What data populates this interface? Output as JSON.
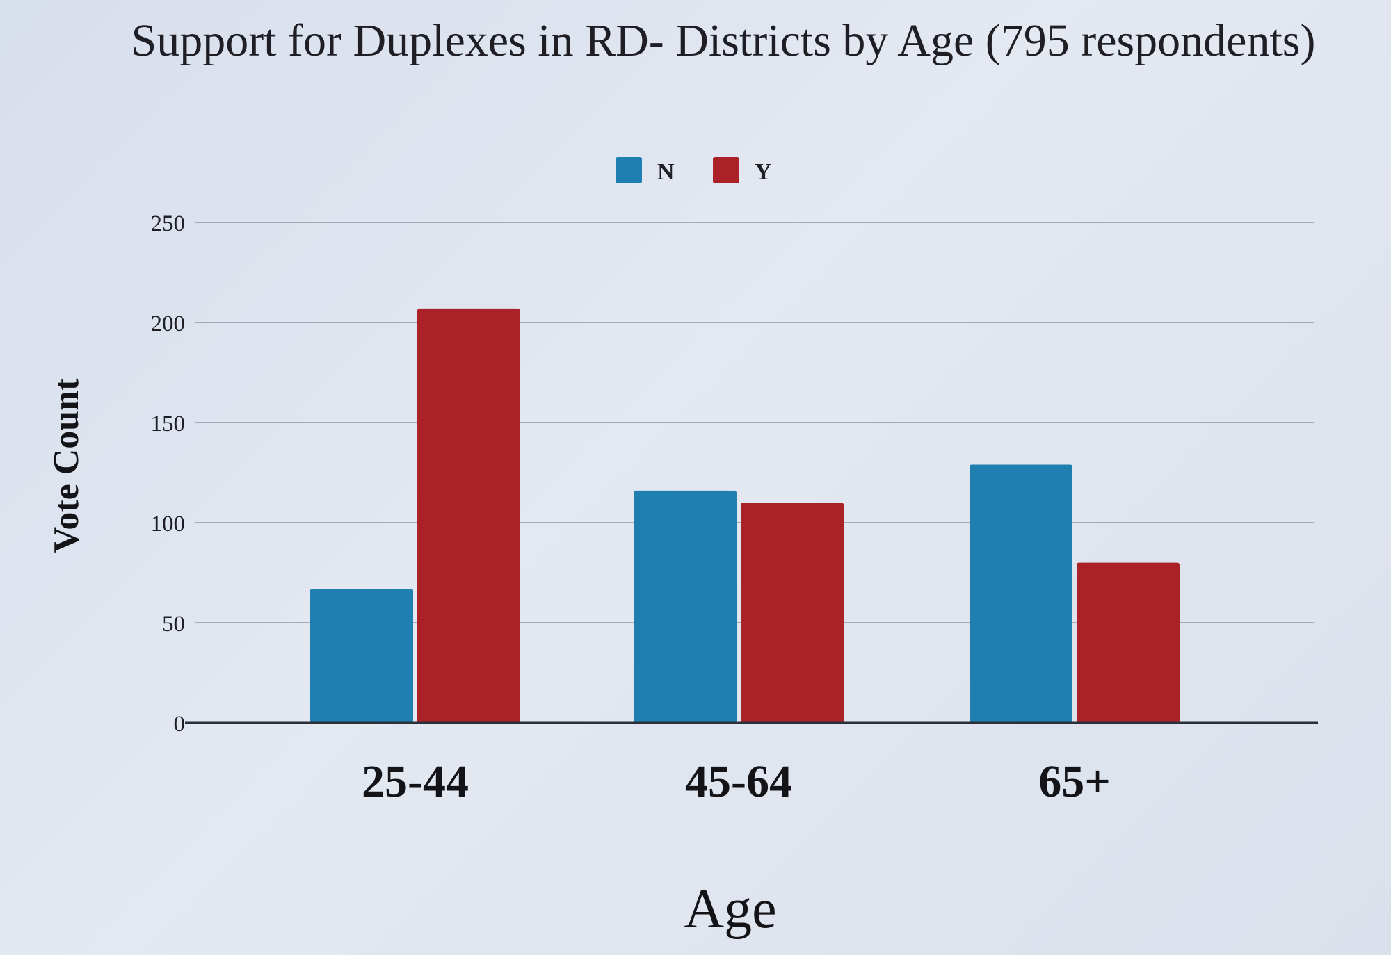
{
  "chart_data": {
    "type": "bar",
    "title": "Support for Duplexes in RD- Districts by Age (795 respondents)",
    "xlabel": "Age",
    "ylabel": "Vote Count",
    "categories": [
      "25-44",
      "45-64",
      "65+"
    ],
    "series": [
      {
        "name": "N",
        "color": "#1f7fb0",
        "values": [
          67,
          116,
          129
        ]
      },
      {
        "name": "Y",
        "color": "#ab2128",
        "values": [
          207,
          110,
          80
        ]
      }
    ],
    "ylim": [
      0,
      250
    ],
    "yticks": [
      0,
      50,
      100,
      150,
      200,
      250
    ],
    "grid": true,
    "legend_position": "top-center"
  }
}
